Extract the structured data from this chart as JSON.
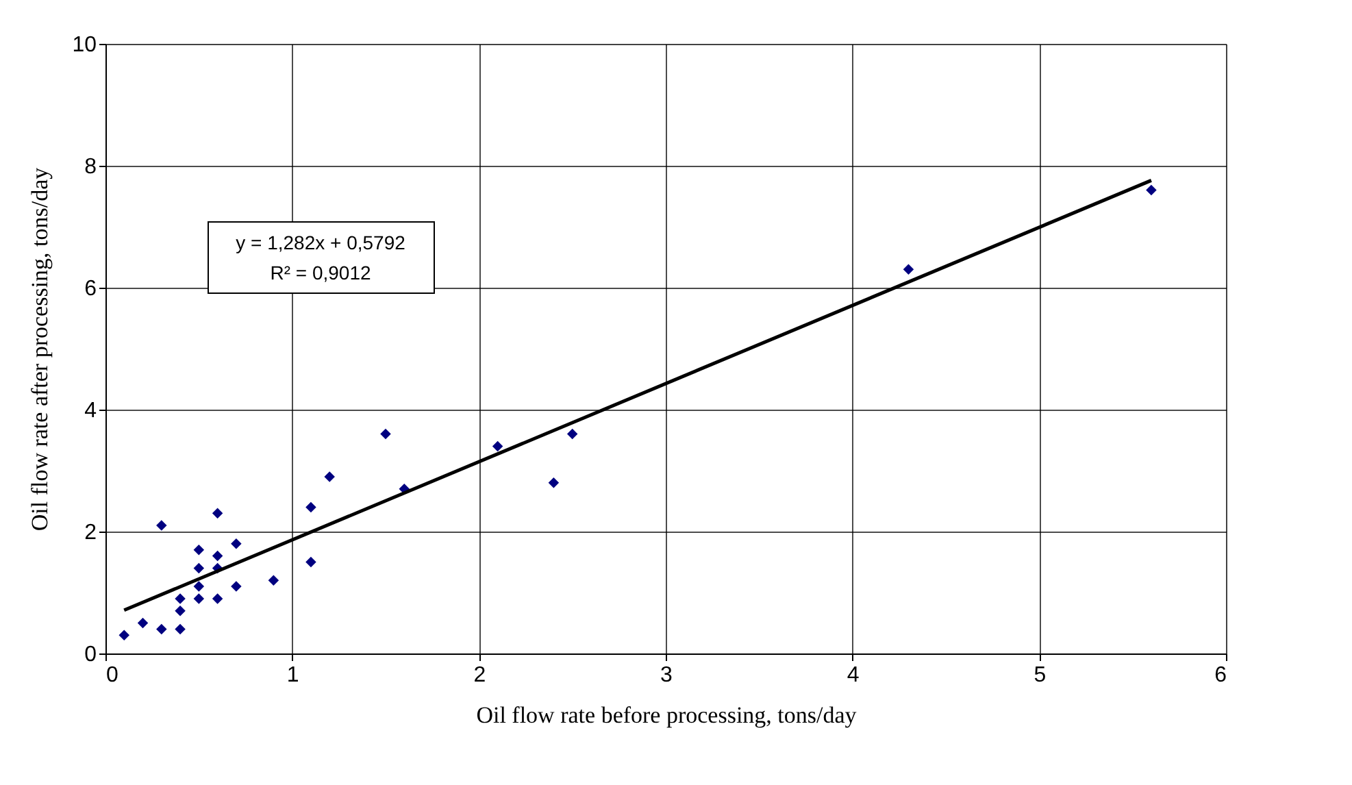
{
  "chart_data": {
    "type": "scatter",
    "xlabel": "Oil flow rate before processing, tons/day",
    "ylabel": "Oil flow rate after processing, tons/day",
    "x": [
      0.1,
      0.2,
      0.3,
      0.4,
      0.4,
      0.4,
      0.5,
      0.5,
      0.5,
      0.5,
      0.6,
      0.6,
      0.6,
      0.7,
      0.7,
      0.3,
      0.6,
      0.9,
      1.1,
      1.1,
      1.2,
      1.5,
      1.6,
      2.1,
      2.4,
      2.5,
      4.3,
      5.6
    ],
    "series": [
      {
        "type": "scatter",
        "color": "#000080",
        "marker": "diamond",
        "values": [
          0.3,
          0.5,
          0.4,
          0.4,
          0.7,
          0.9,
          0.9,
          1.1,
          1.4,
          1.7,
          0.9,
          1.4,
          1.6,
          1.1,
          1.8,
          2.1,
          2.3,
          1.2,
          1.5,
          2.4,
          2.9,
          3.6,
          2.7,
          3.4,
          2.8,
          3.6,
          6.3,
          7.6
        ]
      },
      {
        "type": "line",
        "color": "#000000",
        "line_style": "solid",
        "x": [
          0.1,
          5.6
        ],
        "values": [
          0.71,
          7.76
        ]
      }
    ],
    "annotations": [
      "y = 1,282x + 0,5792",
      "R² = 0,9012"
    ],
    "xlim": [
      0,
      6
    ],
    "xticks": [
      0,
      1,
      2,
      3,
      4,
      5,
      6
    ],
    "ylim": [
      0,
      10
    ],
    "yticks": [
      0,
      2,
      4,
      6,
      8,
      10
    ],
    "grid": true
  }
}
